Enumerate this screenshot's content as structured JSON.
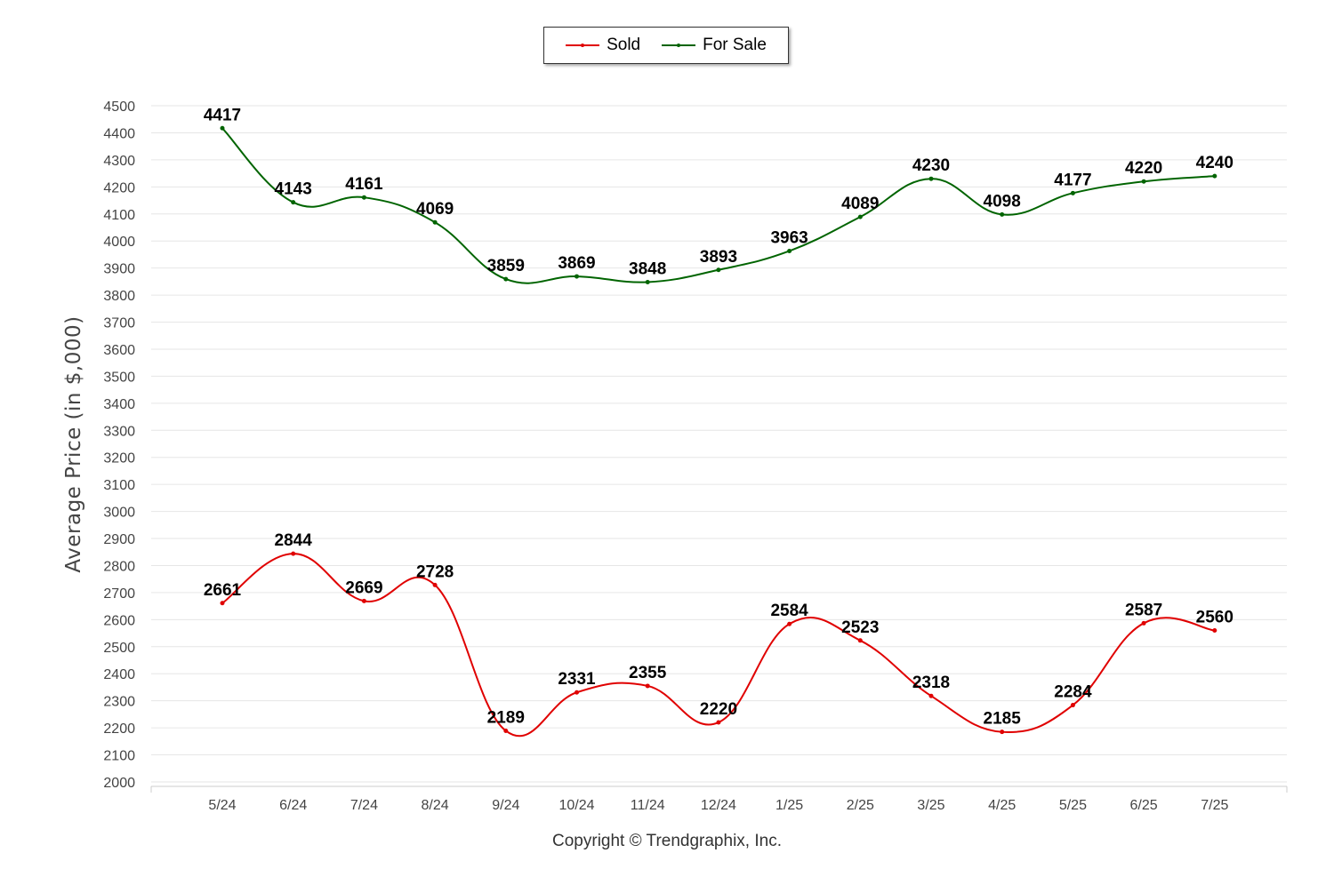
{
  "chart_data": {
    "type": "line",
    "categories": [
      "5/24",
      "6/24",
      "7/24",
      "8/24",
      "9/24",
      "10/24",
      "11/24",
      "12/24",
      "1/25",
      "2/25",
      "3/25",
      "4/25",
      "5/25",
      "6/25",
      "7/25"
    ],
    "series": [
      {
        "name": "Sold",
        "color": "#e00000",
        "values": [
          2661,
          2844,
          2669,
          2728,
          2189,
          2331,
          2355,
          2220,
          2584,
          2523,
          2318,
          2185,
          2284,
          2587,
          2560
        ]
      },
      {
        "name": "For Sale",
        "color": "#006400",
        "values": [
          4417,
          4143,
          4161,
          4069,
          3859,
          3869,
          3848,
          3893,
          3963,
          4089,
          4230,
          4098,
          4177,
          4220,
          4240
        ]
      }
    ],
    "ylabel": "Average Price (in $,000)",
    "xlabel": "",
    "ylim": [
      2000,
      4500
    ],
    "ytick_step": 100,
    "grid": true,
    "legend": "top-center",
    "data_labels": true
  },
  "footer": {
    "copyright": "Copyright © Trendgraphix, Inc."
  }
}
